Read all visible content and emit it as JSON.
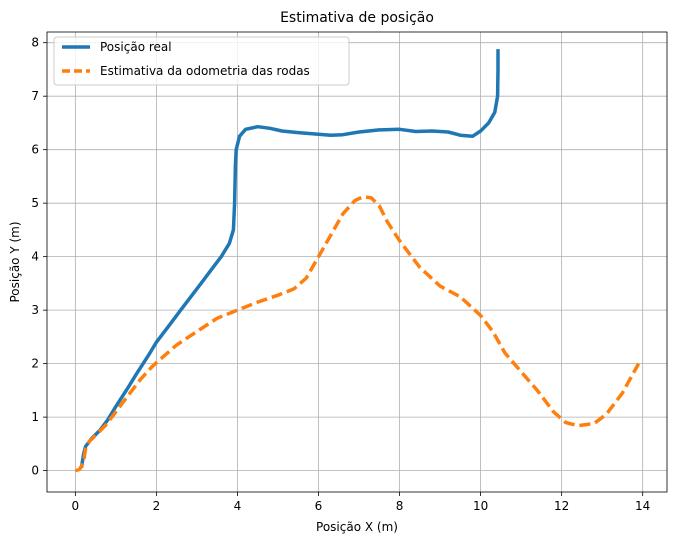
{
  "chart_data": {
    "type": "line",
    "title": "Estimativa de posição",
    "xlabel": "Posição X (m)",
    "ylabel": "Posição Y (m)",
    "xlim": [
      -0.7,
      14.6
    ],
    "ylim": [
      -0.4,
      8.2
    ],
    "xticks": [
      0,
      2,
      4,
      6,
      8,
      10,
      12,
      14
    ],
    "yticks": [
      0,
      1,
      2,
      3,
      4,
      5,
      6,
      7,
      8
    ],
    "grid": true,
    "legend_position": "top-left",
    "series": [
      {
        "name": "Posição real",
        "color": "#1f77b4",
        "style": "solid",
        "points": [
          [
            0.15,
            0.05
          ],
          [
            0.2,
            0.3
          ],
          [
            0.25,
            0.45
          ],
          [
            0.4,
            0.6
          ],
          [
            0.6,
            0.75
          ],
          [
            0.8,
            0.95
          ],
          [
            1.0,
            1.2
          ],
          [
            1.3,
            1.55
          ],
          [
            1.5,
            1.8
          ],
          [
            1.8,
            2.15
          ],
          [
            2.0,
            2.4
          ],
          [
            2.3,
            2.7
          ],
          [
            2.6,
            3.0
          ],
          [
            2.8,
            3.2
          ],
          [
            3.1,
            3.5
          ],
          [
            3.4,
            3.8
          ],
          [
            3.6,
            4.0
          ],
          [
            3.8,
            4.25
          ],
          [
            3.9,
            4.5
          ],
          [
            3.93,
            5.0
          ],
          [
            3.95,
            5.7
          ],
          [
            3.97,
            6.0
          ],
          [
            4.05,
            6.25
          ],
          [
            4.2,
            6.38
          ],
          [
            4.5,
            6.43
          ],
          [
            4.8,
            6.4
          ],
          [
            5.1,
            6.35
          ],
          [
            5.5,
            6.32
          ],
          [
            6.0,
            6.29
          ],
          [
            6.3,
            6.27
          ],
          [
            6.6,
            6.28
          ],
          [
            7.0,
            6.33
          ],
          [
            7.5,
            6.37
          ],
          [
            8.0,
            6.38
          ],
          [
            8.4,
            6.34
          ],
          [
            8.8,
            6.35
          ],
          [
            9.2,
            6.33
          ],
          [
            9.5,
            6.27
          ],
          [
            9.8,
            6.25
          ],
          [
            10.0,
            6.35
          ],
          [
            10.2,
            6.5
          ],
          [
            10.35,
            6.7
          ],
          [
            10.42,
            7.0
          ],
          [
            10.43,
            7.5
          ],
          [
            10.43,
            7.88
          ]
        ]
      },
      {
        "name": "Estimativa da odometria das rodas",
        "color": "#ff7f0e",
        "style": "dashed",
        "points": [
          [
            0.0,
            0.0
          ],
          [
            0.1,
            0.02
          ],
          [
            0.2,
            0.15
          ],
          [
            0.25,
            0.4
          ],
          [
            0.35,
            0.55
          ],
          [
            0.55,
            0.7
          ],
          [
            0.75,
            0.85
          ],
          [
            1.0,
            1.1
          ],
          [
            1.3,
            1.4
          ],
          [
            1.6,
            1.7
          ],
          [
            1.9,
            1.95
          ],
          [
            2.2,
            2.15
          ],
          [
            2.5,
            2.35
          ],
          [
            3.0,
            2.6
          ],
          [
            3.5,
            2.85
          ],
          [
            4.0,
            3.0
          ],
          [
            4.5,
            3.15
          ],
          [
            5.0,
            3.28
          ],
          [
            5.4,
            3.4
          ],
          [
            5.7,
            3.6
          ],
          [
            6.0,
            4.0
          ],
          [
            6.3,
            4.4
          ],
          [
            6.6,
            4.8
          ],
          [
            6.9,
            5.05
          ],
          [
            7.1,
            5.12
          ],
          [
            7.3,
            5.1
          ],
          [
            7.5,
            4.95
          ],
          [
            7.7,
            4.65
          ],
          [
            8.0,
            4.3
          ],
          [
            8.5,
            3.8
          ],
          [
            9.0,
            3.45
          ],
          [
            9.5,
            3.25
          ],
          [
            10.0,
            2.9
          ],
          [
            10.3,
            2.6
          ],
          [
            10.6,
            2.2
          ],
          [
            11.0,
            1.85
          ],
          [
            11.4,
            1.5
          ],
          [
            11.8,
            1.1
          ],
          [
            12.1,
            0.9
          ],
          [
            12.4,
            0.84
          ],
          [
            12.8,
            0.88
          ],
          [
            13.1,
            1.05
          ],
          [
            13.5,
            1.45
          ],
          [
            13.9,
            2.0
          ]
        ]
      }
    ]
  }
}
